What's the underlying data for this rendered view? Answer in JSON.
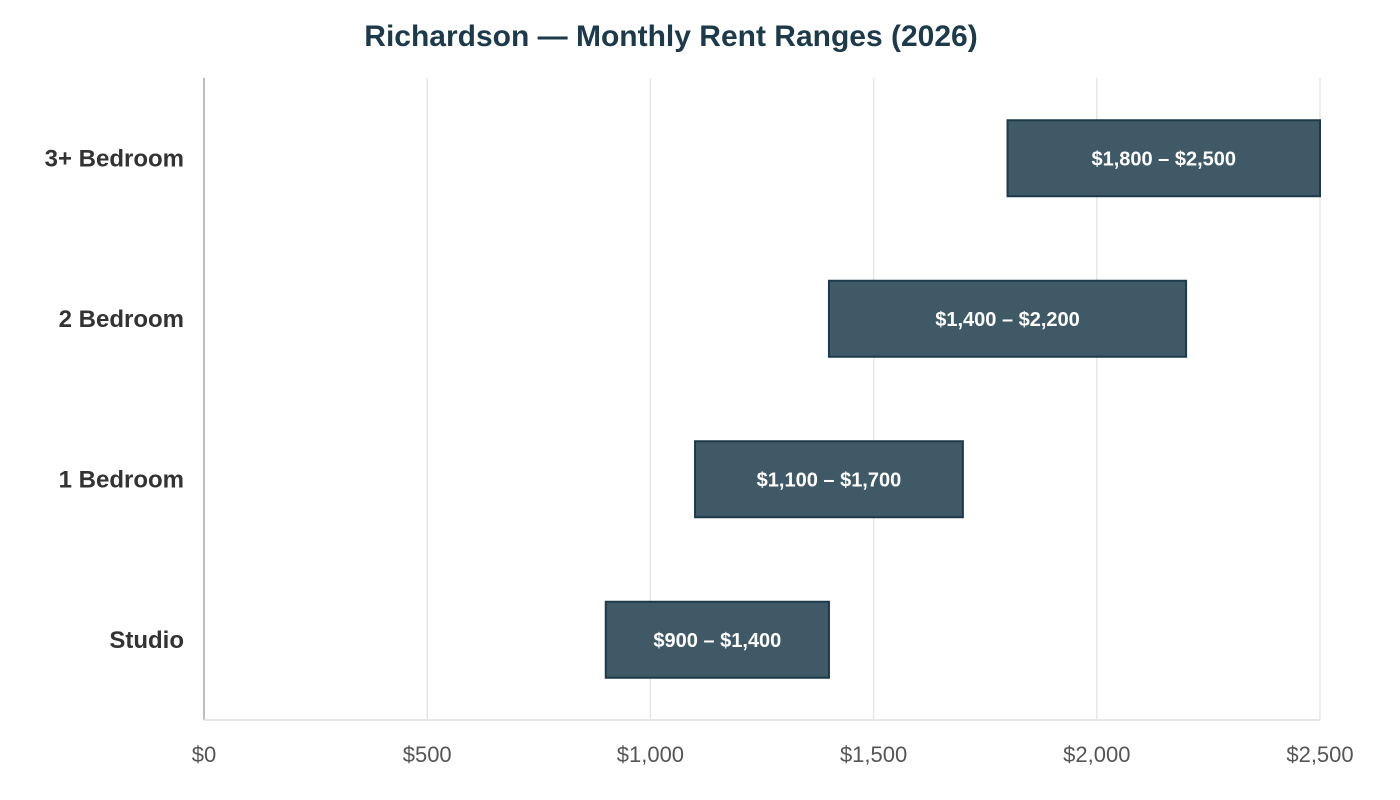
{
  "chart_data": {
    "type": "bar",
    "orientation": "horizontal",
    "style": "floating-range",
    "title": "Richardson — Monthly Rent Ranges (2026)",
    "xlabel": "",
    "ylabel": "",
    "xlim": [
      0,
      2500
    ],
    "ticks": [
      0,
      500,
      1000,
      1500,
      2000,
      2500
    ],
    "tick_labels": [
      "$0",
      "$500",
      "$1,000",
      "$1,500",
      "$2,000",
      "$2,500"
    ],
    "categories": [
      "Studio",
      "1 Bedroom",
      "2 Bedroom",
      "3+ Bedroom"
    ],
    "ranges": [
      {
        "category": "Studio",
        "low": 900,
        "high": 1400,
        "label": "$900 – $1,400"
      },
      {
        "category": "1 Bedroom",
        "low": 1100,
        "high": 1700,
        "label": "$1,100 – $1,700"
      },
      {
        "category": "2 Bedroom",
        "low": 1400,
        "high": 2200,
        "label": "$1,400 – $2,200"
      },
      {
        "category": "3+ Bedroom",
        "low": 1800,
        "high": 2500,
        "label": "$1,800 – $2,500"
      }
    ],
    "grid": "vertical",
    "legend": "none",
    "colors": {
      "bar_fill": "#3f5a66",
      "bar_stroke": "#1c3a4a",
      "grid": "#e6e6e6",
      "axis": "#bdbdbd"
    }
  }
}
